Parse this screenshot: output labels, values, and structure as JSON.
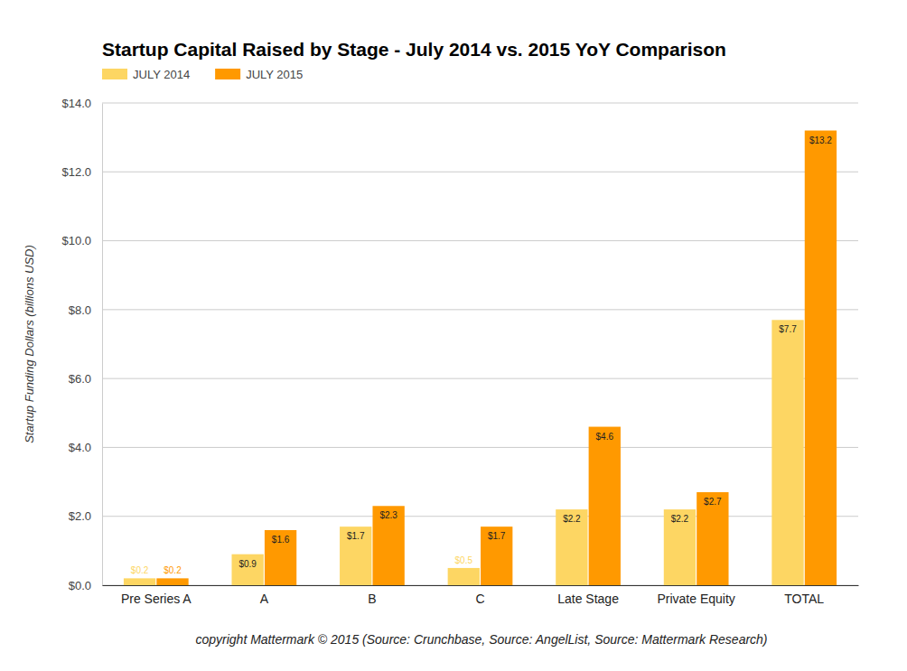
{
  "chart_data": {
    "type": "bar",
    "title": "Startup Capital Raised by Stage - July 2014 vs. 2015 YoY Comparison",
    "y_label": "Startup Funding Dollars (billions USD)",
    "caption": "copyright Mattermark © 2015 (Source: Crunchbase, Source: AngelList, Source: Mattermark Research)",
    "categories": [
      "Pre Series A",
      "A",
      "B",
      "C",
      "Late Stage",
      "Private Equity",
      "TOTAL"
    ],
    "series": [
      {
        "name": "JULY 2014",
        "color": "#fdd663",
        "values": [
          0.2,
          0.9,
          1.7,
          0.5,
          2.2,
          2.2,
          7.7
        ],
        "value_labels": [
          "$0.2",
          "$0.9",
          "$1.7",
          "$0.5",
          "$2.2",
          "$2.2",
          "$7.7"
        ]
      },
      {
        "name": "JULY 2015",
        "color": "#ff9900",
        "values": [
          0.2,
          1.6,
          2.3,
          1.7,
          4.6,
          2.7,
          13.2
        ],
        "value_labels": [
          "$0.2",
          "$1.6",
          "$2.3",
          "$1.7",
          "$4.6",
          "$2.7",
          "$13.2"
        ]
      }
    ],
    "ylim": [
      0,
      14
    ],
    "yticks": [
      {
        "value": 0,
        "label": "$0.0"
      },
      {
        "value": 2,
        "label": "$2.0"
      },
      {
        "value": 4,
        "label": "$4.0"
      },
      {
        "value": 6,
        "label": "$6.0"
      },
      {
        "value": 8,
        "label": "$8.0"
      },
      {
        "value": 10,
        "label": "$10.0"
      },
      {
        "value": 12,
        "label": "$12.0"
      },
      {
        "value": 14,
        "label": "$14.0"
      }
    ],
    "grid": true,
    "legend": "top-left",
    "data_labels": true
  }
}
